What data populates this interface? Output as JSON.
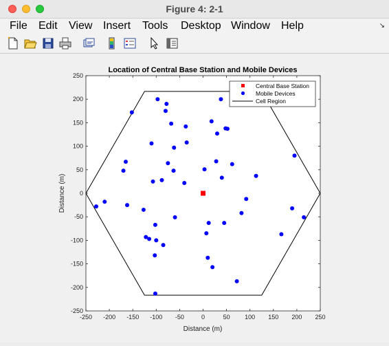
{
  "window": {
    "title": "Figure 4: 2-1"
  },
  "menu": {
    "items": [
      "File",
      "Edit",
      "View",
      "Insert",
      "Tools",
      "Desktop",
      "Window",
      "Help"
    ]
  },
  "toolbar": {
    "icons": [
      "new-figure-icon",
      "open-file-icon",
      "save-icon",
      "print-icon",
      "link-figure-icon",
      "colorbar-icon",
      "legend-icon",
      "pointer-icon",
      "property-inspector-icon"
    ]
  },
  "chart_data": {
    "type": "scatter",
    "title": "Location of Central Base Station and Mobile Devices",
    "xlabel": "Distance (m)",
    "ylabel": "Distance (m)",
    "xlim": [
      -250,
      250
    ],
    "ylim": [
      -250,
      250
    ],
    "xticks": [
      -250,
      -200,
      -150,
      -100,
      -50,
      0,
      50,
      100,
      150,
      200,
      250
    ],
    "yticks": [
      -250,
      -200,
      -150,
      -100,
      -50,
      0,
      50,
      100,
      150,
      200,
      250
    ],
    "grid": false,
    "legend_location": "top-right",
    "legend": [
      "Central Base Station",
      "Mobile Devices",
      "Cell Region"
    ],
    "colors": {
      "base_station": "#ff0000",
      "mobile": "#0000ff",
      "cell": "#000000"
    },
    "base_station": {
      "x": 0,
      "y": 0
    },
    "mobile_devices": {
      "x": [
        -97,
        -78,
        -152,
        -80,
        -68,
        -37,
        -35,
        -110,
        -62,
        18,
        38,
        48,
        52,
        30,
        113,
        62,
        28,
        3,
        40,
        -165,
        -170,
        -75,
        -88,
        -63,
        -107,
        -40,
        -228,
        -210,
        -162,
        -60,
        -127,
        -102,
        -122,
        -115,
        -85,
        -103,
        -102,
        -100,
        7,
        10,
        20,
        45,
        82,
        92,
        190,
        195,
        215,
        167,
        12,
        72
      ],
      "y": [
        200,
        190,
        172,
        175,
        148,
        142,
        108,
        106,
        97,
        153,
        200,
        138,
        137,
        127,
        37,
        62,
        68,
        51,
        33,
        67,
        48,
        64,
        28,
        48,
        25,
        22,
        -28,
        -18,
        -25,
        -51,
        -35,
        -67,
        -93,
        -97,
        -110,
        -132,
        -213,
        -100,
        -85,
        -137,
        -157,
        -63,
        -42,
        -12,
        -32,
        80,
        -51,
        -87,
        -63,
        -187
      ]
    },
    "cell_region": {
      "x": [
        -250,
        -125,
        125,
        250,
        125,
        -125,
        -250
      ],
      "y": [
        0,
        216.5,
        216.5,
        0,
        -216.5,
        -216.5,
        0
      ]
    }
  }
}
